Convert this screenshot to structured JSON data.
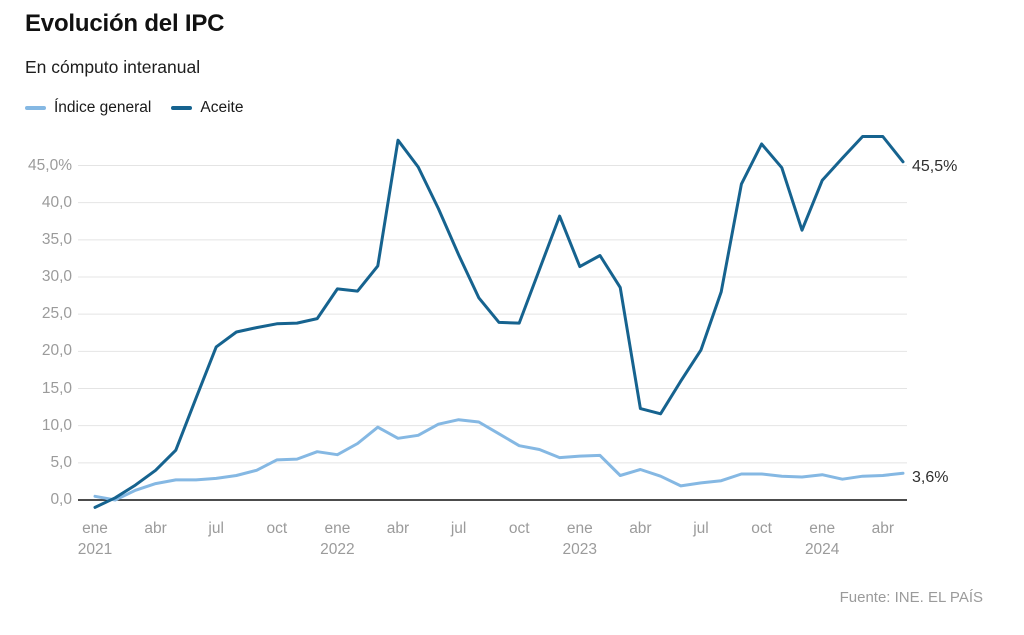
{
  "header": {
    "title": "Evolución del IPC",
    "subtitle": "En cómputo interanual"
  },
  "legend": {
    "items": [
      {
        "label": "Índice general",
        "color": "#85b8e3"
      },
      {
        "label": "Aceite",
        "color": "#16638f"
      }
    ]
  },
  "source": "Fuente: INE. EL PAÍS",
  "colors": {
    "background": "#ffffff",
    "grid": "#e4e4e4",
    "zero_axis": "#111111",
    "tick_text": "#9b9b9b",
    "end_label_text": "#303030",
    "indice_general": "#85b8e3",
    "aceite": "#16638f"
  },
  "chart_data": {
    "type": "line",
    "title": "Evolución del IPC",
    "subtitle": "En cómputo interanual",
    "x_unit": "months, ene 2021 – may 2024",
    "ylim": [
      -1.5,
      50
    ],
    "grid": "horizontal",
    "legend_position": "top-left",
    "y_ticks": [
      {
        "v": 45,
        "label": "45,0%"
      },
      {
        "v": 40,
        "label": "40,0"
      },
      {
        "v": 35,
        "label": "35,0"
      },
      {
        "v": 30,
        "label": "30,0"
      },
      {
        "v": 25,
        "label": "25,0"
      },
      {
        "v": 20,
        "label": "20,0"
      },
      {
        "v": 15,
        "label": "15,0"
      },
      {
        "v": 10,
        "label": "10,0"
      },
      {
        "v": 5,
        "label": "5,0"
      },
      {
        "v": 0,
        "label": "0,0"
      }
    ],
    "x_ticks": [
      {
        "i": 0,
        "month": "ene",
        "year": "2021"
      },
      {
        "i": 3,
        "month": "abr"
      },
      {
        "i": 6,
        "month": "jul"
      },
      {
        "i": 9,
        "month": "oct"
      },
      {
        "i": 12,
        "month": "ene",
        "year": "2022"
      },
      {
        "i": 15,
        "month": "abr"
      },
      {
        "i": 18,
        "month": "jul"
      },
      {
        "i": 21,
        "month": "oct"
      },
      {
        "i": 24,
        "month": "ene",
        "year": "2023"
      },
      {
        "i": 27,
        "month": "abr"
      },
      {
        "i": 30,
        "month": "jul"
      },
      {
        "i": 33,
        "month": "oct"
      },
      {
        "i": 36,
        "month": "ene",
        "year": "2024"
      },
      {
        "i": 39,
        "month": "abr"
      }
    ],
    "series": [
      {
        "name": "Índice general",
        "color": "#85b8e3",
        "end_label": "3,6%",
        "values": [
          0.5,
          0.0,
          1.3,
          2.2,
          2.7,
          2.7,
          2.9,
          3.3,
          4.0,
          5.4,
          5.5,
          6.5,
          6.1,
          7.6,
          9.8,
          8.3,
          8.7,
          10.2,
          10.8,
          10.5,
          8.9,
          7.3,
          6.8,
          5.7,
          5.9,
          6.0,
          3.3,
          4.1,
          3.2,
          1.9,
          2.3,
          2.6,
          3.5,
          3.5,
          3.2,
          3.1,
          3.4,
          2.8,
          3.2,
          3.3,
          3.6
        ]
      },
      {
        "name": "Aceite",
        "color": "#16638f",
        "end_label": "45,5%",
        "values": [
          -1.0,
          0.3,
          2.0,
          4.0,
          6.7,
          13.7,
          20.6,
          22.6,
          23.2,
          23.7,
          23.8,
          24.4,
          28.4,
          28.1,
          31.5,
          48.4,
          44.8,
          39.2,
          33.0,
          27.2,
          23.9,
          23.8,
          31.0,
          38.2,
          31.4,
          32.9,
          28.6,
          12.3,
          11.6,
          16.0,
          20.2,
          28.0,
          42.5,
          47.9,
          44.7,
          36.3,
          43.0,
          46.0,
          48.9,
          48.9,
          45.5
        ]
      }
    ]
  }
}
